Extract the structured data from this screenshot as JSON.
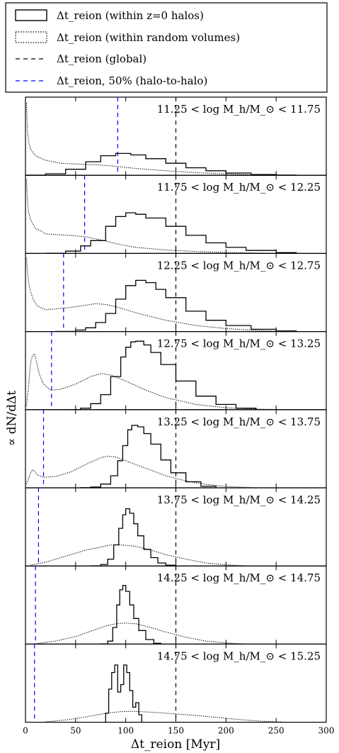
{
  "chart_data": {
    "type": "line",
    "xlabel": "Δt_reion [Myr]",
    "ylabel": "∝ dN/dΔt",
    "xlim": [
      0,
      300
    ],
    "x_ticks": [
      "0",
      "50",
      "100",
      "150",
      "200",
      "250",
      "300"
    ],
    "global_line_x": 150,
    "legend": {
      "placement": "top",
      "entries": [
        {
          "key": "halos",
          "style": "solid-box",
          "label": "Δt_reion (within z=0 halos)"
        },
        {
          "key": "random",
          "style": "dotted-box",
          "label": "Δt_reion (within random volumes)"
        },
        {
          "key": "global",
          "style": "black-dashed",
          "label": "Δt_reion (global)"
        },
        {
          "key": "halo50",
          "style": "blue-dashed",
          "label": "Δt_reion, 50% (halo-to-halo)"
        }
      ]
    },
    "colors": {
      "halos": "#000000",
      "random": "#000000",
      "global": "#000000",
      "halo50": "#0000ff"
    },
    "panels": [
      {
        "label": "11.25 < log M_h/M_⊙ < 11.75",
        "halo50_x": 92,
        "halos": [
          [
            0,
            0.002
          ],
          [
            20,
            0.02
          ],
          [
            40,
            0.08
          ],
          [
            60,
            0.18
          ],
          [
            75,
            0.26
          ],
          [
            90,
            0.29
          ],
          [
            105,
            0.27
          ],
          [
            120,
            0.22
          ],
          [
            140,
            0.16
          ],
          [
            160,
            0.1
          ],
          [
            180,
            0.06
          ],
          [
            200,
            0.03
          ],
          [
            225,
            0.01
          ],
          [
            250,
            0.003
          ],
          [
            270,
            0
          ]
        ],
        "random": [
          [
            1,
            0.96
          ],
          [
            2,
            0.6
          ],
          [
            3,
            0.45
          ],
          [
            5,
            0.35
          ],
          [
            10,
            0.26
          ],
          [
            20,
            0.2
          ],
          [
            35,
            0.16
          ],
          [
            50,
            0.15
          ],
          [
            70,
            0.14
          ],
          [
            90,
            0.12
          ],
          [
            110,
            0.09
          ],
          [
            140,
            0.06
          ],
          [
            170,
            0.035
          ],
          [
            200,
            0.018
          ],
          [
            230,
            0.008
          ],
          [
            260,
            0
          ]
        ]
      },
      {
        "label": "11.75 < log M_h/M_⊙ < 12.25",
        "halo50_x": 59,
        "halos": [
          [
            20,
            0.002
          ],
          [
            40,
            0.03
          ],
          [
            55,
            0.1
          ],
          [
            65,
            0.17
          ],
          [
            80,
            0.36
          ],
          [
            90,
            0.49
          ],
          [
            100,
            0.54
          ],
          [
            110,
            0.52
          ],
          [
            120,
            0.47
          ],
          [
            140,
            0.36
          ],
          [
            160,
            0.24
          ],
          [
            180,
            0.14
          ],
          [
            200,
            0.08
          ],
          [
            220,
            0.04
          ],
          [
            250,
            0.01
          ],
          [
            270,
            0
          ]
        ],
        "random": [
          [
            1,
            0.98
          ],
          [
            2,
            0.7
          ],
          [
            3,
            0.55
          ],
          [
            5,
            0.45
          ],
          [
            10,
            0.33
          ],
          [
            15,
            0.3
          ],
          [
            20,
            0.26
          ],
          [
            30,
            0.25
          ],
          [
            45,
            0.24
          ],
          [
            60,
            0.22
          ],
          [
            75,
            0.18
          ],
          [
            90,
            0.13
          ],
          [
            110,
            0.08
          ],
          [
            140,
            0.045
          ],
          [
            170,
            0.025
          ],
          [
            200,
            0.012
          ],
          [
            230,
            0.005
          ],
          [
            260,
            0
          ]
        ]
      },
      {
        "label": "12.25 < log M_h/M_⊙ < 12.75",
        "halo50_x": 38,
        "halos": [
          [
            30,
            0.002
          ],
          [
            50,
            0.02
          ],
          [
            60,
            0.05
          ],
          [
            70,
            0.12
          ],
          [
            80,
            0.24
          ],
          [
            90,
            0.43
          ],
          [
            100,
            0.61
          ],
          [
            110,
            0.68
          ],
          [
            120,
            0.65
          ],
          [
            130,
            0.56
          ],
          [
            140,
            0.45
          ],
          [
            160,
            0.27
          ],
          [
            180,
            0.15
          ],
          [
            200,
            0.08
          ],
          [
            225,
            0.03
          ],
          [
            250,
            0.008
          ],
          [
            270,
            0
          ]
        ],
        "random": [
          [
            1,
            0.98
          ],
          [
            2,
            0.8
          ],
          [
            3,
            0.66
          ],
          [
            5,
            0.53
          ],
          [
            8,
            0.42
          ],
          [
            12,
            0.34
          ],
          [
            20,
            0.29
          ],
          [
            30,
            0.3
          ],
          [
            45,
            0.32
          ],
          [
            60,
            0.35
          ],
          [
            70,
            0.37
          ],
          [
            80,
            0.36
          ],
          [
            90,
            0.33
          ],
          [
            110,
            0.25
          ],
          [
            140,
            0.15
          ],
          [
            170,
            0.08
          ],
          [
            200,
            0.04
          ],
          [
            230,
            0.015
          ],
          [
            260,
            0
          ]
        ]
      },
      {
        "label": "12.75 < log M_h/M_⊙ < 13.25",
        "halo50_x": 26,
        "halos": [
          [
            40,
            0.002
          ],
          [
            55,
            0.02
          ],
          [
            65,
            0.08
          ],
          [
            75,
            0.2
          ],
          [
            85,
            0.44
          ],
          [
            95,
            0.7
          ],
          [
            100,
            0.83
          ],
          [
            105,
            0.9
          ],
          [
            110,
            0.91
          ],
          [
            118,
            0.86
          ],
          [
            125,
            0.76
          ],
          [
            135,
            0.6
          ],
          [
            150,
            0.38
          ],
          [
            170,
            0.18
          ],
          [
            190,
            0.07
          ],
          [
            210,
            0.02
          ],
          [
            230,
            0
          ]
        ],
        "random": [
          [
            1,
            0.05
          ],
          [
            3,
            0.3
          ],
          [
            5,
            0.62
          ],
          [
            7,
            0.72
          ],
          [
            9,
            0.74
          ],
          [
            11,
            0.64
          ],
          [
            14,
            0.46
          ],
          [
            18,
            0.34
          ],
          [
            25,
            0.26
          ],
          [
            35,
            0.27
          ],
          [
            50,
            0.34
          ],
          [
            65,
            0.44
          ],
          [
            75,
            0.48
          ],
          [
            85,
            0.46
          ],
          [
            100,
            0.38
          ],
          [
            120,
            0.26
          ],
          [
            140,
            0.16
          ],
          [
            170,
            0.07
          ],
          [
            200,
            0.025
          ],
          [
            230,
            0.008
          ],
          [
            260,
            0
          ]
        ]
      },
      {
        "label": "13.25 < log M_h/M_⊙ < 13.75",
        "halo50_x": 18,
        "halos": [
          [
            55,
            0.002
          ],
          [
            65,
            0.01
          ],
          [
            75,
            0.05
          ],
          [
            85,
            0.16
          ],
          [
            92,
            0.36
          ],
          [
            97,
            0.56
          ],
          [
            102,
            0.77
          ],
          [
            106,
            0.83
          ],
          [
            112,
            0.81
          ],
          [
            118,
            0.72
          ],
          [
            125,
            0.58
          ],
          [
            135,
            0.37
          ],
          [
            145,
            0.2
          ],
          [
            160,
            0.08
          ],
          [
            175,
            0.02
          ],
          [
            190,
            0
          ]
        ],
        "random": [
          [
            1,
            0.05
          ],
          [
            3,
            0.12
          ],
          [
            5,
            0.2
          ],
          [
            7,
            0.24
          ],
          [
            9,
            0.22
          ],
          [
            12,
            0.17
          ],
          [
            18,
            0.14
          ],
          [
            30,
            0.15
          ],
          [
            45,
            0.21
          ],
          [
            60,
            0.31
          ],
          [
            75,
            0.4
          ],
          [
            82,
            0.42
          ],
          [
            90,
            0.41
          ],
          [
            100,
            0.36
          ],
          [
            120,
            0.26
          ],
          [
            140,
            0.16
          ],
          [
            160,
            0.09
          ],
          [
            180,
            0.045
          ],
          [
            200,
            0.018
          ],
          [
            230,
            0
          ]
        ]
      },
      {
        "label": "13.75 < log M_h/M_⊙ < 14.25",
        "halo50_x": 13,
        "halos": [
          [
            65,
            0.002
          ],
          [
            75,
            0.02
          ],
          [
            82,
            0.09
          ],
          [
            88,
            0.28
          ],
          [
            93,
            0.5
          ],
          [
            97,
            0.68
          ],
          [
            100,
            0.76
          ],
          [
            104,
            0.7
          ],
          [
            108,
            0.56
          ],
          [
            112,
            0.4
          ],
          [
            118,
            0.22
          ],
          [
            125,
            0.11
          ],
          [
            132,
            0.04
          ],
          [
            140,
            0.01
          ],
          [
            150,
            0
          ]
        ],
        "random": [
          [
            5,
            0.01
          ],
          [
            20,
            0.05
          ],
          [
            40,
            0.13
          ],
          [
            60,
            0.21
          ],
          [
            75,
            0.25
          ],
          [
            85,
            0.28
          ],
          [
            95,
            0.28
          ],
          [
            110,
            0.26
          ],
          [
            125,
            0.21
          ],
          [
            140,
            0.15
          ],
          [
            160,
            0.09
          ],
          [
            180,
            0.04
          ],
          [
            200,
            0.015
          ],
          [
            220,
            0
          ]
        ]
      },
      {
        "label": "14.25 < log M_h/M_⊙ < 14.75",
        "halo50_x": 10,
        "halos": [
          [
            75,
            0.002
          ],
          [
            82,
            0.04
          ],
          [
            87,
            0.22
          ],
          [
            91,
            0.52
          ],
          [
            94,
            0.72
          ],
          [
            97,
            0.78
          ],
          [
            100,
            0.7
          ],
          [
            104,
            0.52
          ],
          [
            108,
            0.34
          ],
          [
            113,
            0.18
          ],
          [
            120,
            0.06
          ],
          [
            128,
            0.01
          ],
          [
            135,
            0
          ]
        ],
        "random": [
          [
            10,
            0.005
          ],
          [
            30,
            0.04
          ],
          [
            50,
            0.1
          ],
          [
            65,
            0.17
          ],
          [
            80,
            0.24
          ],
          [
            90,
            0.27
          ],
          [
            100,
            0.28
          ],
          [
            110,
            0.27
          ],
          [
            125,
            0.22
          ],
          [
            140,
            0.16
          ],
          [
            160,
            0.09
          ],
          [
            180,
            0.04
          ],
          [
            200,
            0.015
          ],
          [
            220,
            0
          ]
        ]
      },
      {
        "label": "14.75 < log M_h/M_⊙ < 15.25",
        "halo50_x": 9,
        "halos": [
          [
            79,
            0
          ],
          [
            80,
            0.12
          ],
          [
            82,
            0.12
          ],
          [
            83,
            0.44
          ],
          [
            85,
            0.44
          ],
          [
            86,
            0.66
          ],
          [
            88,
            0.66
          ],
          [
            89,
            0.76
          ],
          [
            91,
            0.76
          ],
          [
            92,
            0.4
          ],
          [
            94,
            0.4
          ],
          [
            95,
            0.5
          ],
          [
            97,
            0.5
          ],
          [
            98,
            0.76
          ],
          [
            100,
            0.76
          ],
          [
            101,
            0.66
          ],
          [
            103,
            0.66
          ],
          [
            104,
            0.42
          ],
          [
            106,
            0.42
          ],
          [
            107,
            0.2
          ],
          [
            109,
            0.2
          ],
          [
            110,
            0.26
          ],
          [
            112,
            0.26
          ],
          [
            113,
            0.1
          ],
          [
            115,
            0.1
          ],
          [
            116,
            0
          ]
        ],
        "random": [
          [
            20,
            0.005
          ],
          [
            40,
            0.03
          ],
          [
            60,
            0.07
          ],
          [
            80,
            0.12
          ],
          [
            95,
            0.14
          ],
          [
            105,
            0.145
          ],
          [
            115,
            0.14
          ],
          [
            130,
            0.13
          ],
          [
            150,
            0.11
          ],
          [
            170,
            0.09
          ],
          [
            190,
            0.065
          ],
          [
            210,
            0.04
          ],
          [
            230,
            0.018
          ],
          [
            250,
            0.005
          ],
          [
            260,
            0
          ]
        ]
      }
    ]
  }
}
